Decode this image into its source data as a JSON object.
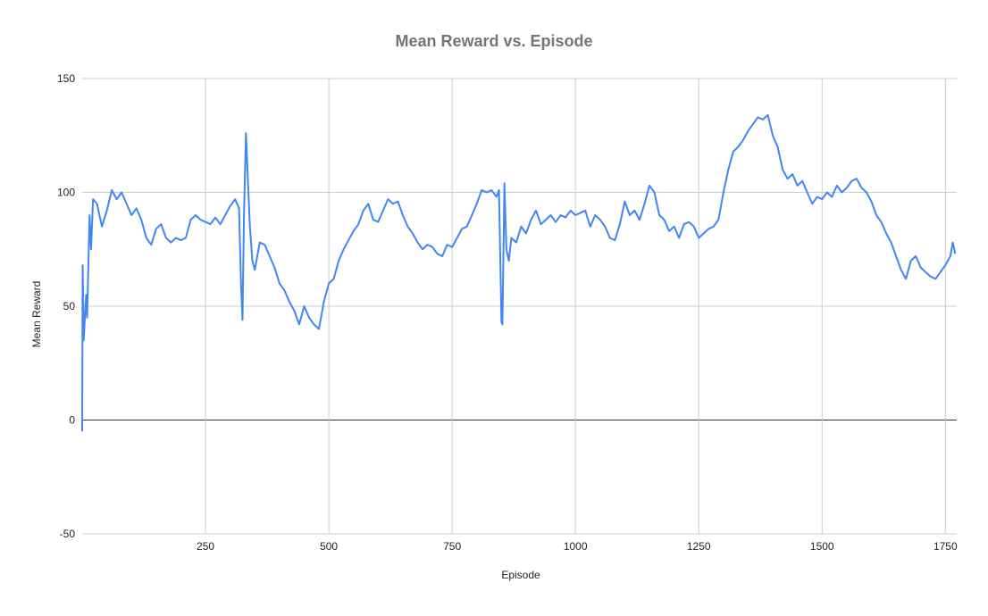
{
  "chart_data": {
    "type": "line",
    "title": "Mean Reward vs. Episode",
    "x_label": "Episode",
    "y_label": "Mean Reward",
    "xlim": [
      0,
      1773
    ],
    "xticks": [
      250,
      500,
      750,
      1000,
      1250,
      1500,
      1750
    ],
    "ylim": [
      -50,
      150
    ],
    "yticks": [
      -50,
      0,
      50,
      100,
      150
    ],
    "grid": true,
    "x": [
      0,
      1,
      3,
      8,
      10,
      15,
      18,
      22,
      30,
      40,
      50,
      60,
      70,
      80,
      90,
      100,
      110,
      120,
      130,
      140,
      150,
      160,
      170,
      180,
      190,
      200,
      210,
      220,
      230,
      240,
      250,
      260,
      270,
      280,
      290,
      300,
      310,
      318,
      322,
      325,
      328,
      332,
      336,
      340,
      345,
      350,
      360,
      370,
      380,
      390,
      400,
      410,
      420,
      430,
      440,
      450,
      460,
      470,
      480,
      490,
      500,
      510,
      520,
      530,
      540,
      550,
      560,
      570,
      580,
      590,
      600,
      610,
      620,
      630,
      640,
      650,
      660,
      670,
      680,
      690,
      700,
      710,
      720,
      730,
      740,
      750,
      760,
      770,
      780,
      790,
      800,
      810,
      820,
      830,
      840,
      845,
      850,
      852,
      856,
      860,
      865,
      870,
      880,
      890,
      900,
      910,
      920,
      930,
      940,
      950,
      960,
      970,
      980,
      990,
      1000,
      1010,
      1020,
      1030,
      1040,
      1050,
      1060,
      1070,
      1080,
      1090,
      1100,
      1110,
      1120,
      1130,
      1140,
      1150,
      1160,
      1170,
      1180,
      1190,
      1200,
      1210,
      1220,
      1230,
      1240,
      1250,
      1260,
      1270,
      1280,
      1290,
      1300,
      1310,
      1320,
      1330,
      1340,
      1350,
      1360,
      1370,
      1380,
      1390,
      1400,
      1410,
      1420,
      1430,
      1440,
      1450,
      1460,
      1470,
      1480,
      1490,
      1500,
      1510,
      1520,
      1530,
      1540,
      1550,
      1560,
      1570,
      1580,
      1590,
      1600,
      1610,
      1620,
      1630,
      1640,
      1650,
      1660,
      1670,
      1680,
      1690,
      1700,
      1710,
      1720,
      1730,
      1740,
      1750,
      1760,
      1765,
      1770
    ],
    "series": [
      {
        "name": "Mean Reward",
        "color": "#4285f4",
        "values": [
          -5,
          68,
          35,
          55,
          45,
          90,
          75,
          97,
          95,
          85,
          92,
          101,
          97,
          100,
          95,
          90,
          93,
          88,
          80,
          77,
          84,
          86,
          80,
          78,
          80,
          79,
          80,
          88,
          90,
          88,
          87,
          86,
          89,
          86,
          90,
          94,
          97,
          93,
          60,
          44,
          90,
          126,
          105,
          85,
          70,
          66,
          78,
          77,
          72,
          67,
          60,
          57,
          52,
          48,
          42,
          50,
          45,
          42,
          40,
          52,
          60,
          62,
          70,
          75,
          79,
          83,
          86,
          92,
          95,
          88,
          87,
          92,
          97,
          95,
          96,
          90,
          85,
          82,
          78,
          75,
          77,
          76,
          73,
          72,
          77,
          76,
          80,
          84,
          85,
          90,
          95,
          101,
          100,
          101,
          98,
          101,
          43,
          42,
          104,
          75,
          70,
          80,
          78,
          85,
          82,
          88,
          92,
          86,
          88,
          90,
          87,
          90,
          89,
          92,
          90,
          91,
          92,
          85,
          90,
          88,
          85,
          80,
          79,
          86,
          96,
          90,
          92,
          88,
          95,
          103,
          100,
          90,
          88,
          83,
          85,
          80,
          86,
          87,
          85,
          80,
          82,
          84,
          85,
          88,
          100,
          110,
          118,
          120,
          123,
          127,
          130,
          133,
          132,
          134,
          125,
          120,
          110,
          106,
          108,
          103,
          105,
          100,
          95,
          98,
          97,
          100,
          98,
          103,
          100,
          102,
          105,
          106,
          102,
          100,
          96,
          90,
          87,
          82,
          78,
          72,
          66,
          62,
          70,
          72,
          67,
          65,
          63,
          62,
          65,
          68,
          72,
          78,
          73
        ]
      }
    ]
  }
}
